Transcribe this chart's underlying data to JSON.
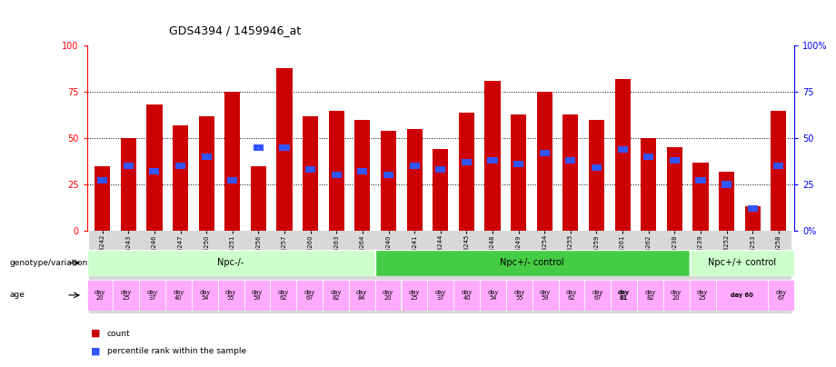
{
  "title": "GDS4394 / 1459946_at",
  "samples": [
    "GSM973242",
    "GSM973243",
    "GSM973246",
    "GSM973247",
    "GSM973250",
    "GSM973251",
    "GSM973256",
    "GSM973257",
    "GSM973260",
    "GSM973263",
    "GSM973264",
    "GSM973240",
    "GSM973241",
    "GSM973244",
    "GSM973245",
    "GSM973248",
    "GSM973249",
    "GSM973254",
    "GSM973255",
    "GSM973259",
    "GSM973261",
    "GSM973262",
    "GSM973238",
    "GSM973239",
    "GSM973252",
    "GSM973253",
    "GSM973258"
  ],
  "count_values": [
    35,
    50,
    68,
    57,
    62,
    75,
    35,
    88,
    62,
    65,
    60,
    54,
    55,
    44,
    64,
    81,
    63,
    75,
    63,
    60,
    82,
    50,
    45,
    37,
    32,
    13,
    65
  ],
  "percentile_values": [
    27,
    35,
    32,
    35,
    40,
    27,
    45,
    45,
    33,
    30,
    32,
    30,
    35,
    33,
    37,
    38,
    36,
    42,
    38,
    34,
    44,
    40,
    38,
    27,
    25,
    12,
    35
  ],
  "groups": [
    {
      "label": "Npc-/-",
      "start": 0,
      "end": 11,
      "color": "#ccffcc"
    },
    {
      "label": "Npc+/- control",
      "start": 11,
      "end": 23,
      "color": "#44cc44"
    },
    {
      "label": "Npc+/+ control",
      "start": 23,
      "end": 27,
      "color": "#ccffcc"
    }
  ],
  "age_data": [
    {
      "label": "day\n20",
      "bold": false,
      "start": 0,
      "end": 1
    },
    {
      "label": "day\n25",
      "bold": false,
      "start": 1,
      "end": 2
    },
    {
      "label": "day\n37",
      "bold": false,
      "start": 2,
      "end": 3
    },
    {
      "label": "day\n40",
      "bold": false,
      "start": 3,
      "end": 4
    },
    {
      "label": "day\n54",
      "bold": false,
      "start": 4,
      "end": 5
    },
    {
      "label": "day\n55",
      "bold": false,
      "start": 5,
      "end": 6
    },
    {
      "label": "day\n59",
      "bold": false,
      "start": 6,
      "end": 7
    },
    {
      "label": "day\n62",
      "bold": false,
      "start": 7,
      "end": 8
    },
    {
      "label": "day\n67",
      "bold": false,
      "start": 8,
      "end": 9
    },
    {
      "label": "day\n82",
      "bold": false,
      "start": 9,
      "end": 10
    },
    {
      "label": "day\n84",
      "bold": false,
      "start": 10,
      "end": 11
    },
    {
      "label": "day\n20",
      "bold": false,
      "start": 11,
      "end": 12
    },
    {
      "label": "day\n25",
      "bold": false,
      "start": 12,
      "end": 13
    },
    {
      "label": "day\n37",
      "bold": false,
      "start": 13,
      "end": 14
    },
    {
      "label": "day\n40",
      "bold": false,
      "start": 14,
      "end": 15
    },
    {
      "label": "day\n54",
      "bold": false,
      "start": 15,
      "end": 16
    },
    {
      "label": "day\n55",
      "bold": false,
      "start": 16,
      "end": 17
    },
    {
      "label": "day\n59",
      "bold": false,
      "start": 17,
      "end": 18
    },
    {
      "label": "day\n62",
      "bold": false,
      "start": 18,
      "end": 19
    },
    {
      "label": "day\n67",
      "bold": false,
      "start": 19,
      "end": 20
    },
    {
      "label": "day\n81",
      "bold": true,
      "start": 20,
      "end": 21
    },
    {
      "label": "day\n82",
      "bold": false,
      "start": 21,
      "end": 22
    },
    {
      "label": "day\n20",
      "bold": false,
      "start": 22,
      "end": 23
    },
    {
      "label": "day\n25",
      "bold": false,
      "start": 23,
      "end": 24
    },
    {
      "label": "day 60",
      "bold": true,
      "start": 24,
      "end": 26
    },
    {
      "label": "day\n67",
      "bold": false,
      "start": 26,
      "end": 27
    }
  ],
  "ylim": [
    0,
    100
  ],
  "bar_color": "#cc0000",
  "percentile_color": "#3355ff",
  "grid_lines": [
    25,
    50,
    75
  ],
  "age_bg_color": "#ffaaff",
  "left_label_color": "#000000",
  "bg_xtick_color": "#dddddd"
}
